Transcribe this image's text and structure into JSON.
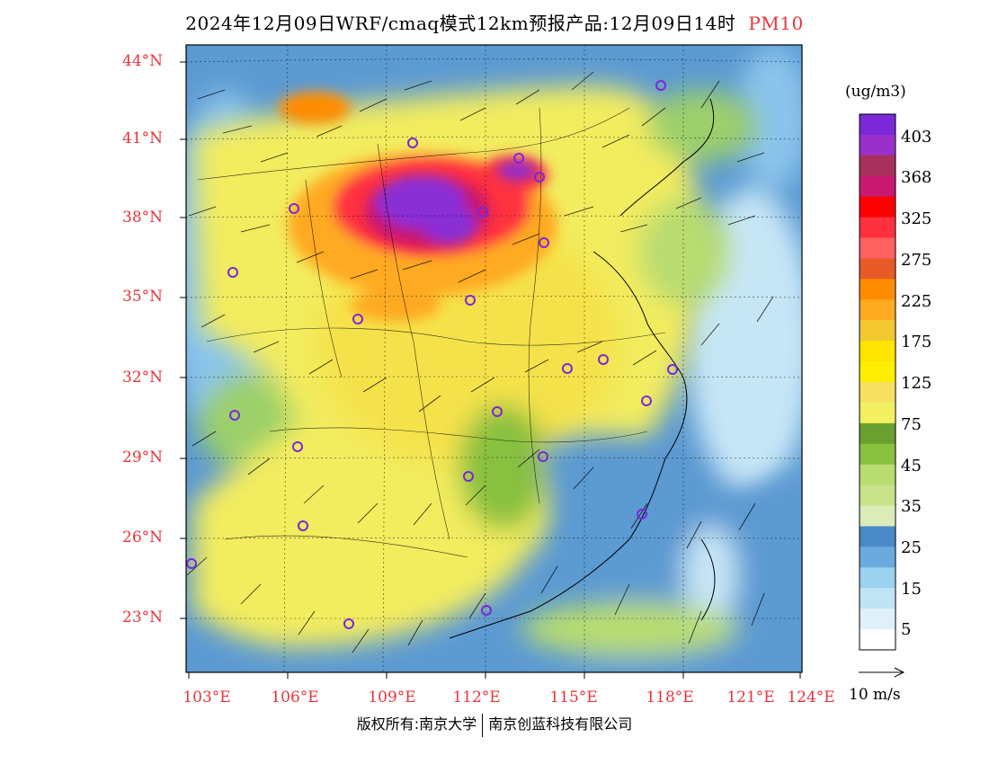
{
  "title": {
    "main": "2024年12月09日WRF/cmaq模式12km预报产品:12月09日14时",
    "variable": "PM10"
  },
  "lat_labels": [
    "44°N",
    "41°N",
    "38°N",
    "35°N",
    "32°N",
    "29°N",
    "26°N",
    "23°N"
  ],
  "lon_labels": [
    "103°E",
    "106°E",
    "109°E",
    "112°E",
    "115°E",
    "118°E",
    "121°E",
    "124°E"
  ],
  "colorbar": {
    "unit": "(ug/m3)",
    "labels": [
      "403",
      "368",
      "325",
      "275",
      "225",
      "175",
      "125",
      "75",
      "45",
      "35",
      "25",
      "15",
      "5"
    ],
    "colors": [
      "#7a28d8",
      "#9a30cc",
      "#a8305c",
      "#c81870",
      "#ff0000",
      "#ff3040",
      "#ff6060",
      "#e85a28",
      "#ff8c00",
      "#ffaa20",
      "#f2c830",
      "#ffe400",
      "#ffee00",
      "#f5e060",
      "#f2f060",
      "#6aa030",
      "#88c040",
      "#b8dc70",
      "#c8e28a",
      "#dcecb8",
      "#4a8ac8",
      "#6aaadc",
      "#9ad2f0",
      "#c0e4f4",
      "#e0f0fa",
      "#ffffff"
    ]
  },
  "wind_ref": {
    "label": "10 m/s"
  },
  "footer": {
    "left": "版权所有:南京大学",
    "right": "南京创蓝科技有限公司"
  }
}
